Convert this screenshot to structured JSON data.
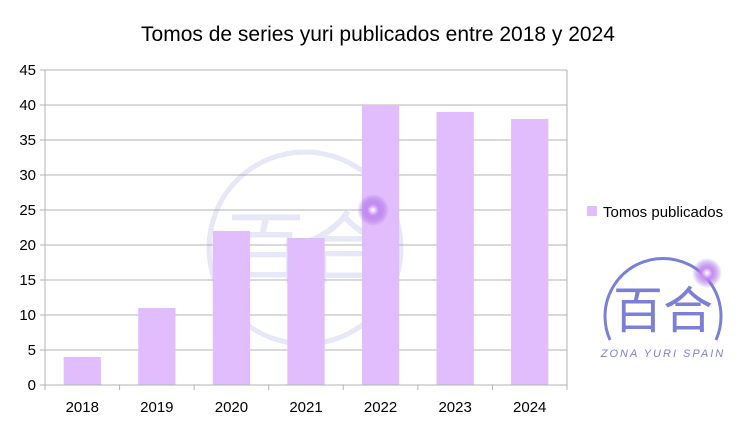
{
  "chart_data": {
    "type": "bar",
    "title": "Tomos de series yuri publicados entre 2018 y 2024",
    "categories": [
      "2018",
      "2019",
      "2020",
      "2021",
      "2022",
      "2023",
      "2024"
    ],
    "series": [
      {
        "name": "Tomos publicados",
        "values": [
          4,
          11,
          22,
          21,
          40,
          39,
          38
        ]
      }
    ],
    "xlabel": "",
    "ylabel": "",
    "ylim": [
      0,
      45
    ],
    "yticks": [
      0,
      5,
      10,
      15,
      20,
      25,
      30,
      35,
      40,
      45
    ],
    "grid": true,
    "legend_placement": "right",
    "colors": {
      "bar": "#e2bdfd",
      "grid": "#b3b3b3",
      "axis": "#b3b3b3",
      "text": "#000000",
      "logo": "#7b7fd6"
    }
  },
  "logo": {
    "glyphs": "百合",
    "caption": "ZONA YURI SPAIN"
  }
}
